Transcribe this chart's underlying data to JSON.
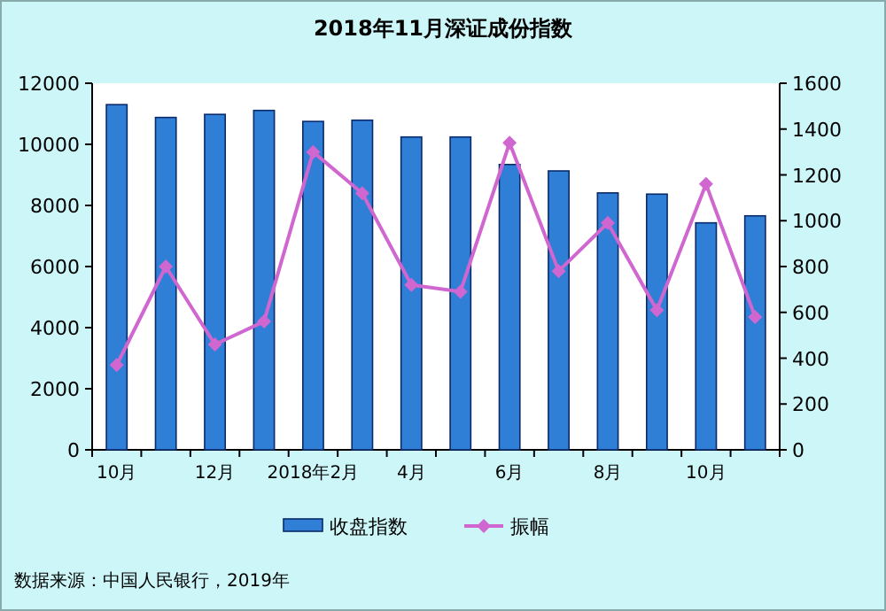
{
  "chart_data": {
    "type": "bar",
    "title": "2018年11月深证成份指数",
    "categories": [
      "10月",
      null,
      "12月",
      null,
      "2018年2月",
      null,
      "4月",
      null,
      "6月",
      null,
      "8月",
      null,
      "10月",
      null
    ],
    "series": [
      {
        "name": "收盘指数",
        "color": "#2f7fd6",
        "values": [
          11300,
          10880,
          10980,
          11110,
          10750,
          10790,
          10240,
          10240,
          9340,
          9130,
          8410,
          8370,
          7430,
          7660
        ]
      },
      {
        "name": "振幅",
        "type": "line",
        "axis": "y2",
        "color": "#d066d0",
        "values": [
          370,
          800,
          460,
          560,
          1300,
          1120,
          720,
          690,
          1340,
          780,
          990,
          610,
          1160,
          580
        ]
      }
    ],
    "ylim": [
      0,
      12000
    ],
    "yticks": [
      0,
      2000,
      4000,
      6000,
      8000,
      10000,
      12000
    ],
    "y2lim": [
      0,
      1600
    ],
    "y2ticks": [
      0,
      200,
      400,
      600,
      800,
      1000,
      1200,
      1400,
      1600
    ],
    "legend": "bottom",
    "marker": "diamond",
    "line_style": "solid",
    "annotations": [
      "数据来源：中国人民银行，2019年"
    ]
  }
}
